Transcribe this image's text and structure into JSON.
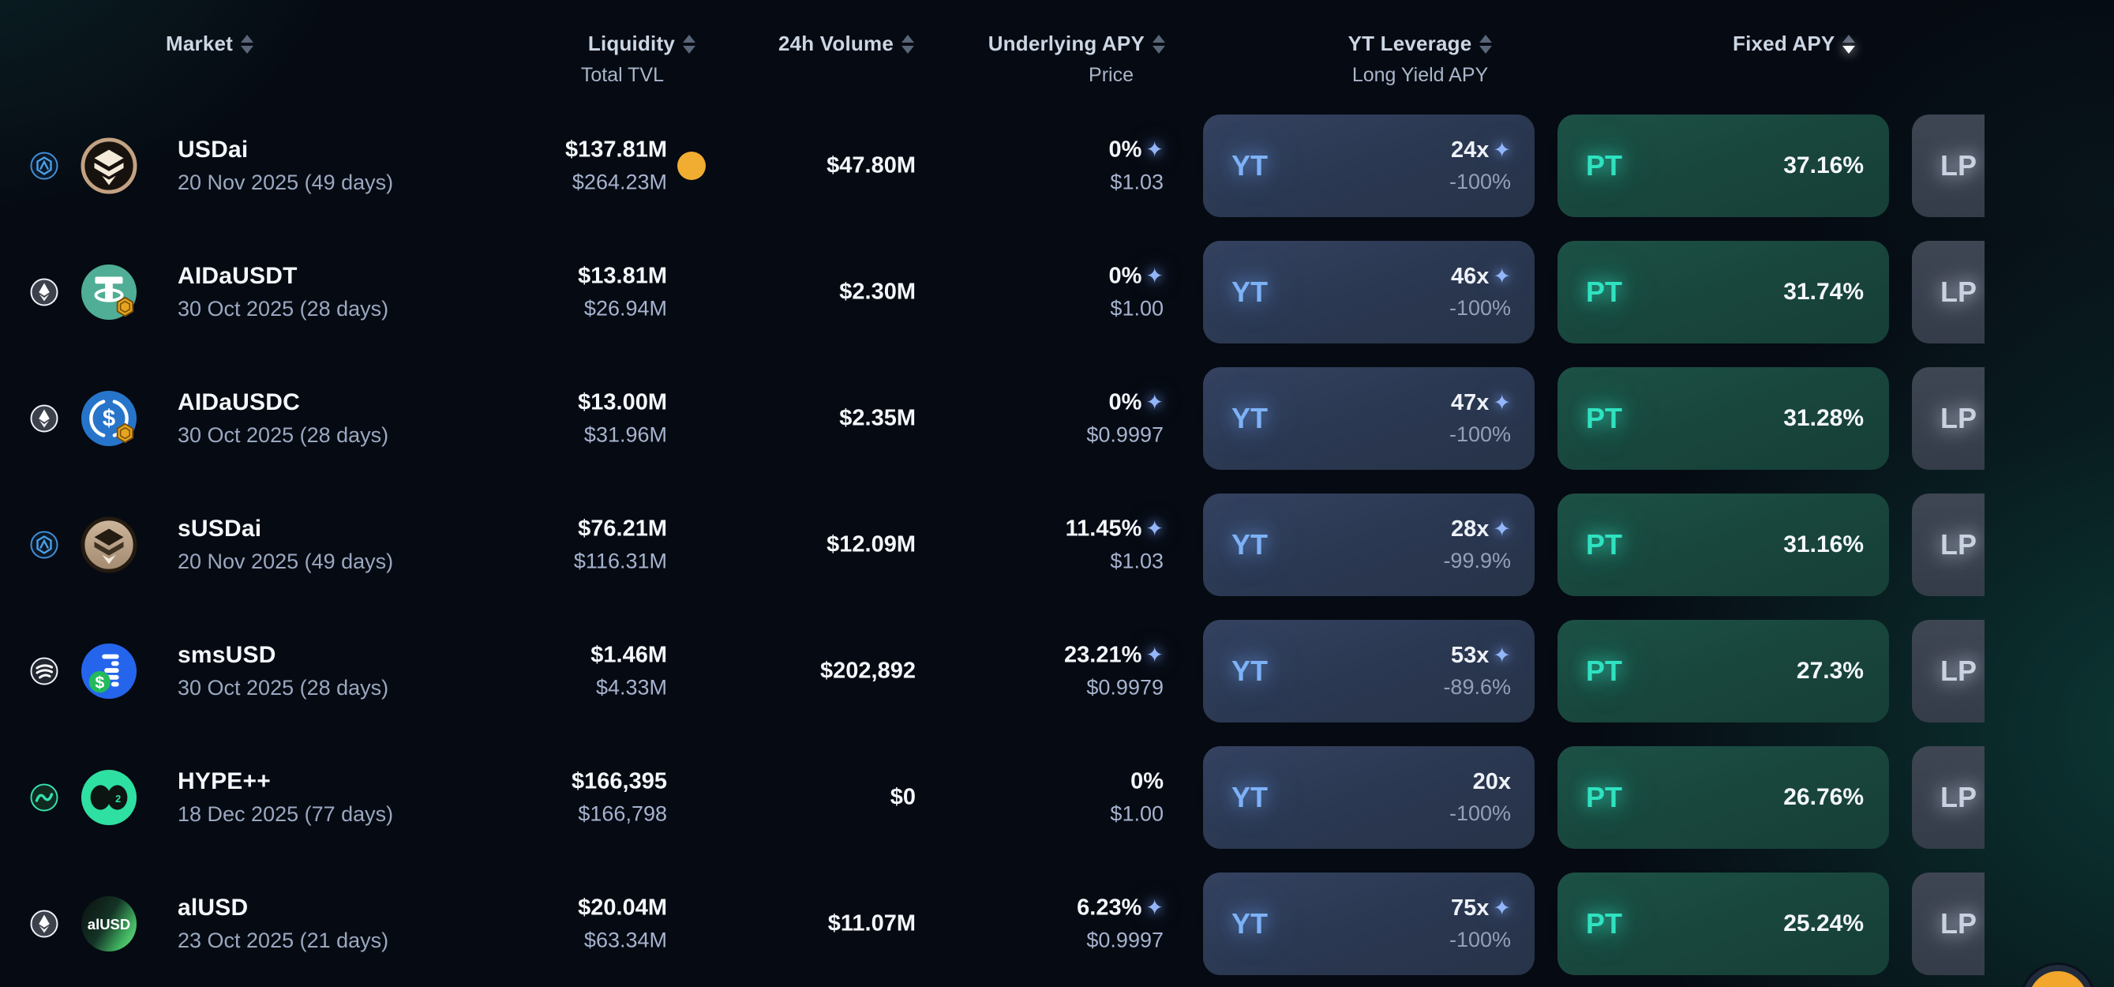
{
  "header": {
    "columns": [
      {
        "label": "Market"
      },
      {
        "label": "Liquidity",
        "sub": "Total TVL"
      },
      {
        "label": "24h Volume"
      },
      {
        "label": "Underlying APY",
        "sub": "Price"
      },
      {
        "label": "YT Leverage",
        "sub": "Long Yield APY"
      },
      {
        "label": "Fixed APY",
        "sort": "desc"
      }
    ]
  },
  "rows": [
    {
      "market": "USDai",
      "maturity": "20 Nov 2025 (49 days)",
      "chain_icon": "plume-chain",
      "token_icon": "usdai-token",
      "liquidity": "$137.81M",
      "total_tvl": "$264.23M",
      "highlight_dot": true,
      "volume": "$47.80M",
      "underlying_apy": "0%",
      "apy_sparkle": true,
      "price": "$1.03",
      "yt_label": "YT",
      "yt_leverage": "24x",
      "yt_sparkle": true,
      "long_yield_apy": "-100%",
      "pt_label": "PT",
      "fixed_apy": "37.16%",
      "lp_label": "LP"
    },
    {
      "market": "AIDaUSDT",
      "maturity": "30 Oct 2025 (28 days)",
      "chain_icon": "ethereum-chain",
      "token_icon": "ausdt-token",
      "liquidity": "$13.81M",
      "total_tvl": "$26.94M",
      "highlight_dot": false,
      "volume": "$2.30M",
      "underlying_apy": "0%",
      "apy_sparkle": true,
      "price": "$1.00",
      "yt_label": "YT",
      "yt_leverage": "46x",
      "yt_sparkle": true,
      "long_yield_apy": "-100%",
      "pt_label": "PT",
      "fixed_apy": "31.74%",
      "lp_label": "LP"
    },
    {
      "market": "AIDaUSDC",
      "maturity": "30 Oct 2025 (28 days)",
      "chain_icon": "ethereum-chain",
      "token_icon": "ausdc-token",
      "liquidity": "$13.00M",
      "total_tvl": "$31.96M",
      "highlight_dot": false,
      "volume": "$2.35M",
      "underlying_apy": "0%",
      "apy_sparkle": true,
      "price": "$0.9997",
      "yt_label": "YT",
      "yt_leverage": "47x",
      "yt_sparkle": true,
      "long_yield_apy": "-100%",
      "pt_label": "PT",
      "fixed_apy": "31.28%",
      "lp_label": "LP"
    },
    {
      "market": "sUSDai",
      "maturity": "20 Nov 2025 (49 days)",
      "chain_icon": "plume-chain",
      "token_icon": "susdai-token",
      "liquidity": "$76.21M",
      "total_tvl": "$116.31M",
      "highlight_dot": false,
      "volume": "$12.09M",
      "underlying_apy": "11.45%",
      "apy_sparkle": true,
      "price": "$1.03",
      "yt_label": "YT",
      "yt_leverage": "28x",
      "yt_sparkle": true,
      "long_yield_apy": "-99.9%",
      "pt_label": "PT",
      "fixed_apy": "31.16%",
      "lp_label": "LP"
    },
    {
      "market": "smsUSD",
      "maturity": "30 Oct 2025 (28 days)",
      "chain_icon": "sonic-chain",
      "token_icon": "smsusd-token",
      "liquidity": "$1.46M",
      "total_tvl": "$4.33M",
      "highlight_dot": false,
      "volume": "$202,892",
      "underlying_apy": "23.21%",
      "apy_sparkle": true,
      "price": "$0.9979",
      "yt_label": "YT",
      "yt_leverage": "53x",
      "yt_sparkle": true,
      "long_yield_apy": "-89.6%",
      "pt_label": "PT",
      "fixed_apy": "27.3%",
      "lp_label": "LP"
    },
    {
      "market": "HYPE++",
      "maturity": "18 Dec 2025 (77 days)",
      "chain_icon": "hyperliquid-chain",
      "token_icon": "hype-token",
      "liquidity": "$166,395",
      "total_tvl": "$166,798",
      "highlight_dot": false,
      "volume": "$0",
      "underlying_apy": "0%",
      "apy_sparkle": false,
      "price": "$1.00",
      "yt_label": "YT",
      "yt_leverage": "20x",
      "yt_sparkle": false,
      "long_yield_apy": "-100%",
      "pt_label": "PT",
      "fixed_apy": "26.76%",
      "lp_label": "LP"
    },
    {
      "market": "alUSD",
      "maturity": "23 Oct 2025 (21 days)",
      "chain_icon": "ethereum-chain",
      "token_icon": "alusd-token",
      "liquidity": "$20.04M",
      "total_tvl": "$63.34M",
      "highlight_dot": false,
      "volume": "$11.07M",
      "underlying_apy": "6.23%",
      "apy_sparkle": true,
      "price": "$0.9997",
      "yt_label": "YT",
      "yt_leverage": "75x",
      "yt_sparkle": true,
      "long_yield_apy": "-100%",
      "pt_label": "PT",
      "fixed_apy": "25.24%",
      "lp_label": "LP"
    }
  ],
  "colors": {
    "yt_accent": "#7db2f7",
    "pt_accent": "#2fe2c0",
    "lp_accent": "#c9d2e0",
    "sparkle": "#93b6fa",
    "liquidity_dot": "#f0ad31",
    "chat_button": "#f2a62b",
    "background": "#060a12"
  }
}
